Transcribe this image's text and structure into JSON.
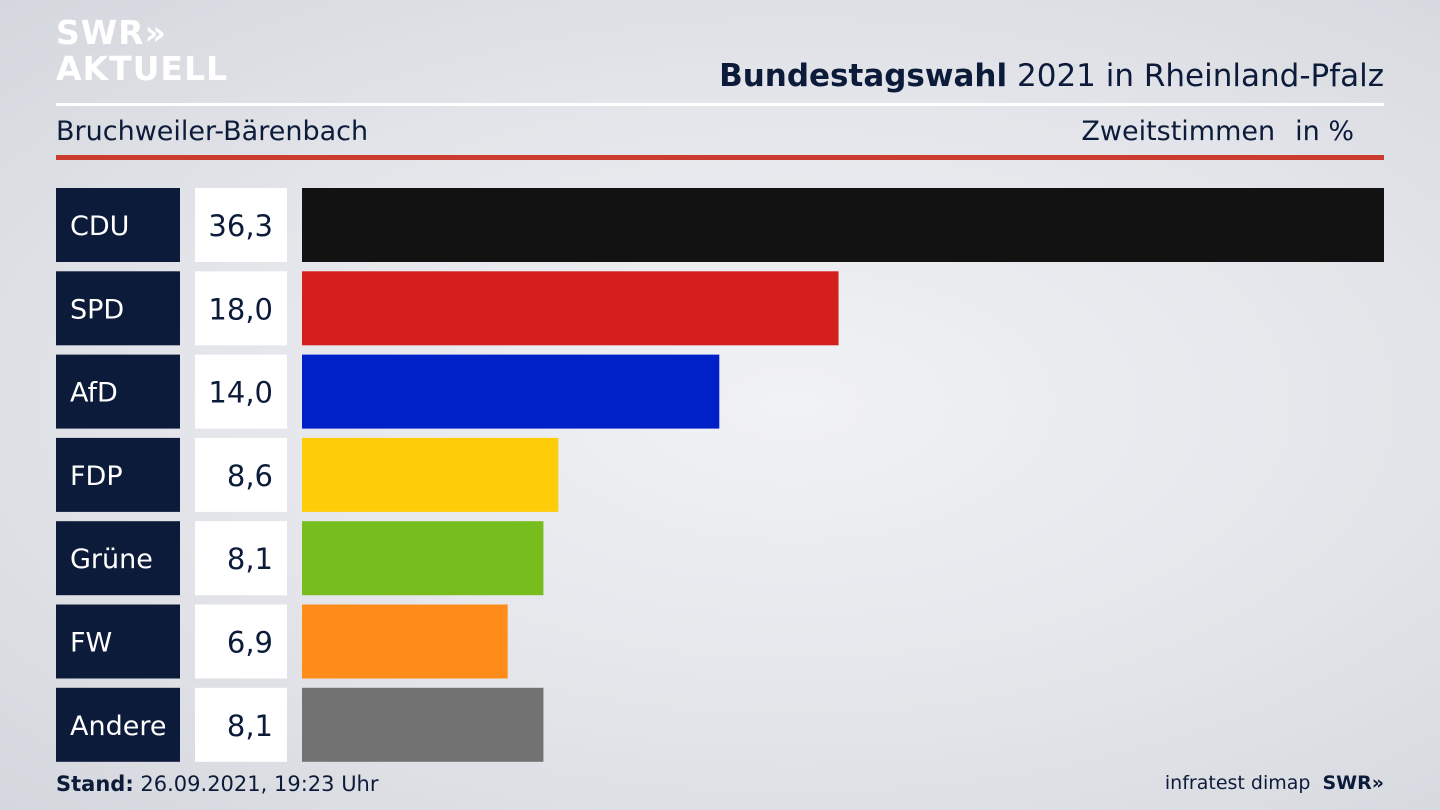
{
  "logo": {
    "line1": "SWR»",
    "line2": "AKTUELL"
  },
  "header": {
    "title_bold": "Bundestagswahl",
    "title_rest": "2021 in Rheinland-Pfalz",
    "region": "Bruchweiler-Bärenbach",
    "measure": "Zweitstimmen",
    "unit": "in %"
  },
  "chart_data": {
    "type": "bar",
    "orientation": "horizontal",
    "categories": [
      "CDU",
      "SPD",
      "AfD",
      "FDP",
      "Grüne",
      "FW",
      "Andere"
    ],
    "values": [
      36.3,
      18.0,
      14.0,
      8.6,
      8.1,
      6.9,
      8.1
    ],
    "value_labels": [
      "36,3",
      "18,0",
      "14,0",
      "8,6",
      "8,1",
      "6,9",
      "8,1"
    ],
    "colors": [
      "#121212",
      "#d51f1f",
      "#0020c8",
      "#ffcc0a",
      "#78bd1e",
      "#ff8c19",
      "#727272"
    ],
    "xlim": [
      0,
      36.3
    ],
    "grid": false,
    "legend": "none"
  },
  "footer": {
    "stand_label": "Stand:",
    "stand_value": "26.09.2021, 19:23 Uhr",
    "source": "infratest dimap",
    "brand": "SWR»"
  },
  "colors": {
    "label_box": "#0d1b3a",
    "value_box": "#ffffff",
    "rule_accent": "#cc3b30"
  }
}
